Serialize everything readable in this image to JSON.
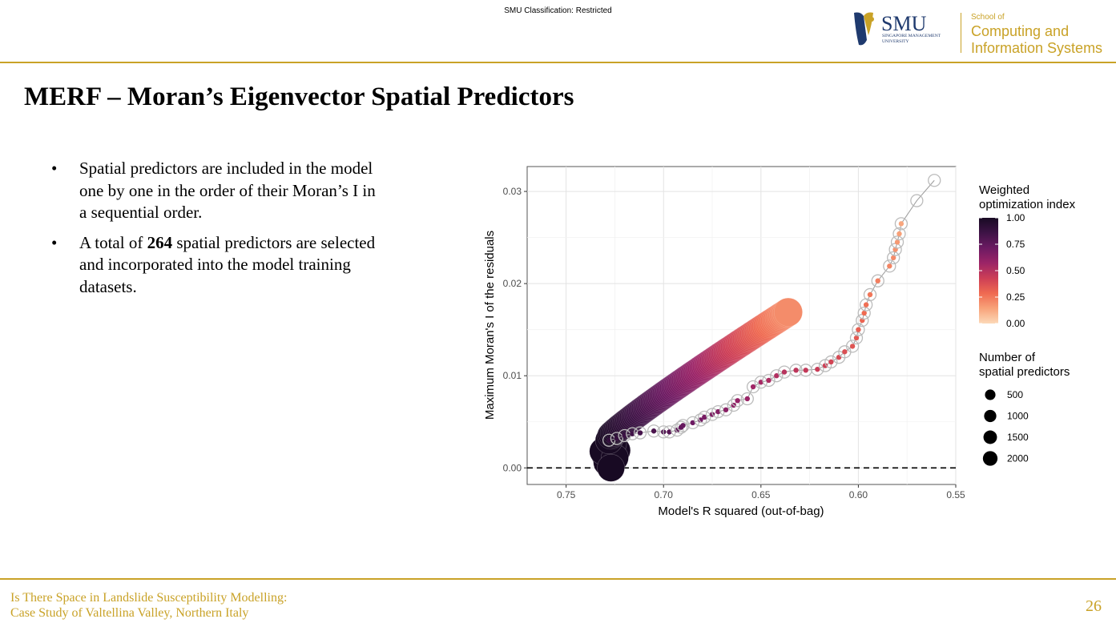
{
  "header": {
    "classification": "SMU Classification: Restricted",
    "logo": {
      "smu": "SMU",
      "university_line1": "SINGAPORE MANAGEMENT",
      "university_line2": "UNIVERSITY",
      "school_of": "School of",
      "school_line1": "Computing and",
      "school_line2": "Information Systems"
    }
  },
  "title": "MERF – Moran’s Eigenvector Spatial Predictors",
  "bullets": [
    {
      "marker": "•",
      "pre": "Spatial predictors are included in the model one by one in the order of their Moran’s I in a sequential order.",
      "bold": "",
      "post": ""
    },
    {
      "marker": "•",
      "pre": "A total of ",
      "bold": "264",
      "post": " spatial predictors are selected and incorporated into the model training datasets."
    }
  ],
  "colors": {
    "accent": "#c9a227",
    "smu_navy": "#1f3a6e",
    "hollow_ring": "#bbbbbb",
    "trace_line": "#9a9a9a"
  },
  "chart_data": {
    "type": "scatter",
    "title": "",
    "xlabel": "Model's R squared (out-of-bag)",
    "ylabel": "Maximum Moran's I of the residuals",
    "x_reversed": true,
    "xlim": [
      0.77,
      0.55
    ],
    "ylim": [
      -0.0018,
      0.0327
    ],
    "x_ticks": [
      0.75,
      0.7,
      0.65,
      0.6,
      0.55
    ],
    "x_tick_labels": [
      "0.75",
      "0.70",
      "0.65",
      "0.60",
      "0.55"
    ],
    "y_ticks": [
      0.0,
      0.01,
      0.02,
      0.03
    ],
    "y_tick_labels": [
      "0.00",
      "0.01",
      "0.02",
      "0.03"
    ],
    "grid": true,
    "reference_line": {
      "y": 0.0,
      "style": "dashed"
    },
    "color_legend": {
      "title": [
        "Weighted",
        "optimization index"
      ],
      "ticks": [
        1.0,
        0.75,
        0.5,
        0.25,
        0.0
      ],
      "tick_labels": [
        "1.00",
        "0.75",
        "0.50",
        "0.25",
        "0.00"
      ],
      "scale": "magma",
      "scale_colors": [
        "#fcd9b8",
        "#f8a37a",
        "#ef6a51",
        "#cd3e56",
        "#9c2467",
        "#6c1a62",
        "#3e1346",
        "#180a23"
      ]
    },
    "size_legend": {
      "title": [
        "Number of",
        "spatial predictors"
      ],
      "values": [
        500,
        1000,
        1500,
        2000
      ],
      "labels": [
        "500",
        "1000",
        "1500",
        "2000"
      ]
    },
    "series": [
      {
        "role": "large circles: predictor count mapped to size, color to index",
        "x_start": 0.727,
        "x_end": 0.636,
        "y_start": 0.0035,
        "y_end": 0.0169,
        "size_range": [
          2000,
          2200
        ],
        "index_range": [
          1.0,
          0.2
        ],
        "core_points": [
          [
            0.728,
            0.0012
          ],
          [
            0.727,
            0.0015
          ],
          [
            0.726,
            0.001
          ],
          [
            0.729,
            0.002
          ],
          [
            0.725,
            0.0016
          ],
          [
            0.728,
            0.0008
          ],
          [
            0.726,
            0.0022
          ],
          [
            0.73,
            0.0014
          ],
          [
            0.727,
            0.0004
          ],
          [
            0.724,
            0.0019
          ],
          [
            0.729,
            0.0006
          ],
          [
            0.726,
            0.0026
          ],
          [
            0.731,
            0.0018
          ],
          [
            0.725,
            0.0011
          ],
          [
            0.728,
            0.003
          ],
          [
            0.727,
            0.0
          ]
        ]
      },
      {
        "role": "hollow circles with small colored points, joined by a line",
        "points": [
          [
            0.728,
            0.003
          ],
          [
            0.724,
            0.0032
          ],
          [
            0.72,
            0.0035
          ],
          [
            0.716,
            0.0037
          ],
          [
            0.712,
            0.0038
          ],
          [
            0.705,
            0.004
          ],
          [
            0.7,
            0.0039
          ],
          [
            0.697,
            0.0039
          ],
          [
            0.693,
            0.0041
          ],
          [
            0.691,
            0.0044
          ],
          [
            0.69,
            0.0046
          ],
          [
            0.685,
            0.0049
          ],
          [
            0.681,
            0.0052
          ],
          [
            0.679,
            0.0055
          ],
          [
            0.675,
            0.0058
          ],
          [
            0.672,
            0.0061
          ],
          [
            0.668,
            0.0063
          ],
          [
            0.664,
            0.0068
          ],
          [
            0.662,
            0.0073
          ],
          [
            0.657,
            0.0075
          ],
          [
            0.654,
            0.0088
          ],
          [
            0.65,
            0.0093
          ],
          [
            0.646,
            0.0095
          ],
          [
            0.642,
            0.01
          ],
          [
            0.638,
            0.0104
          ],
          [
            0.632,
            0.0106
          ],
          [
            0.627,
            0.0106
          ],
          [
            0.621,
            0.0107
          ],
          [
            0.617,
            0.0111
          ],
          [
            0.614,
            0.0115
          ],
          [
            0.61,
            0.012
          ],
          [
            0.607,
            0.0126
          ],
          [
            0.603,
            0.0132
          ],
          [
            0.601,
            0.0141
          ],
          [
            0.6,
            0.015
          ],
          [
            0.598,
            0.016
          ],
          [
            0.597,
            0.0168
          ],
          [
            0.596,
            0.0177
          ],
          [
            0.594,
            0.0188
          ],
          [
            0.59,
            0.0203
          ],
          [
            0.584,
            0.0219
          ],
          [
            0.582,
            0.0228
          ],
          [
            0.581,
            0.0237
          ],
          [
            0.58,
            0.0245
          ],
          [
            0.579,
            0.0254
          ],
          [
            0.578,
            0.0265
          ],
          [
            0.57,
            0.029
          ],
          [
            0.561,
            0.0312
          ]
        ],
        "index_range": [
          1.0,
          0.0
        ]
      }
    ]
  },
  "footer": {
    "line1": "Is There Space in Landslide Susceptibility Modelling:",
    "line2": "Case Study of Valtellina Valley, Northern Italy",
    "page": "26"
  }
}
